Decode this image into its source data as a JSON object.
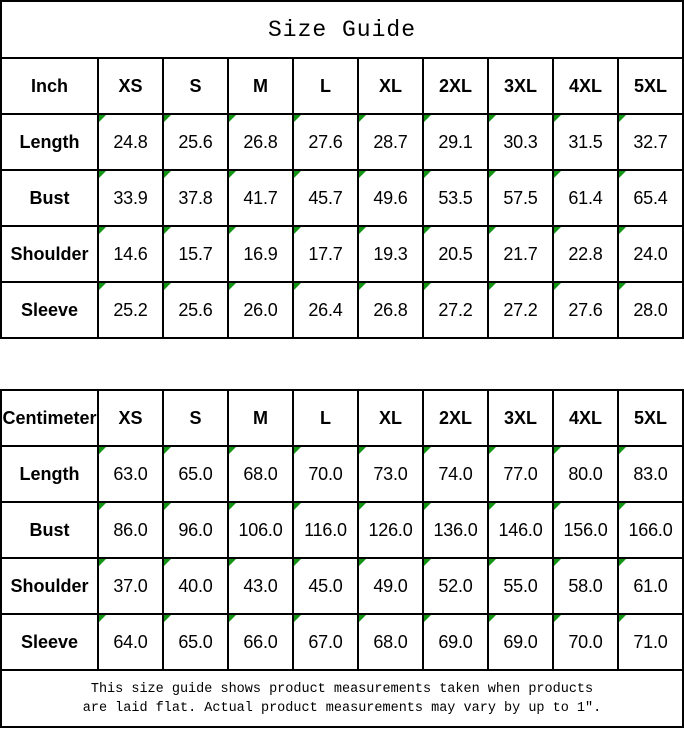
{
  "title": "Size Guide",
  "colors": {
    "border": "#000000",
    "background": "#ffffff",
    "text": "#000000",
    "error_indicator_green": "#149414"
  },
  "icons": {
    "error_indicator": "green-corner-triangle-icon"
  },
  "footer": {
    "line1": "This size guide shows product measurements taken when products",
    "line2": "are laid flat. Actual product measurements may vary by up to 1″."
  },
  "chart_data": [
    {
      "type": "table",
      "unit_label": "Inch",
      "sizes": [
        "XS",
        "S",
        "M",
        "L",
        "XL",
        "2XL",
        "3XL",
        "4XL",
        "5XL"
      ],
      "rows": [
        {
          "label": "Length",
          "values": [
            "24.8",
            "25.6",
            "26.8",
            "27.6",
            "28.7",
            "29.1",
            "30.3",
            "31.5",
            "32.7"
          ]
        },
        {
          "label": "Bust",
          "values": [
            "33.9",
            "37.8",
            "41.7",
            "45.7",
            "49.6",
            "53.5",
            "57.5",
            "61.4",
            "65.4"
          ]
        },
        {
          "label": "Shoulder",
          "values": [
            "14.6",
            "15.7",
            "16.9",
            "17.7",
            "19.3",
            "20.5",
            "21.7",
            "22.8",
            "24.0"
          ]
        },
        {
          "label": "Sleeve",
          "values": [
            "25.2",
            "25.6",
            "26.0",
            "26.4",
            "26.8",
            "27.2",
            "27.2",
            "27.6",
            "28.0"
          ]
        }
      ]
    },
    {
      "type": "table",
      "unit_label": "Centimeter",
      "sizes": [
        "XS",
        "S",
        "M",
        "L",
        "XL",
        "2XL",
        "3XL",
        "4XL",
        "5XL"
      ],
      "rows": [
        {
          "label": "Length",
          "values": [
            "63.0",
            "65.0",
            "68.0",
            "70.0",
            "73.0",
            "74.0",
            "77.0",
            "80.0",
            "83.0"
          ]
        },
        {
          "label": "Bust",
          "values": [
            "86.0",
            "96.0",
            "106.0",
            "116.0",
            "126.0",
            "136.0",
            "146.0",
            "156.0",
            "166.0"
          ]
        },
        {
          "label": "Shoulder",
          "values": [
            "37.0",
            "40.0",
            "43.0",
            "45.0",
            "49.0",
            "52.0",
            "55.0",
            "58.0",
            "61.0"
          ]
        },
        {
          "label": "Sleeve",
          "values": [
            "64.0",
            "65.0",
            "66.0",
            "67.0",
            "68.0",
            "69.0",
            "69.0",
            "70.0",
            "71.0"
          ]
        }
      ]
    }
  ]
}
